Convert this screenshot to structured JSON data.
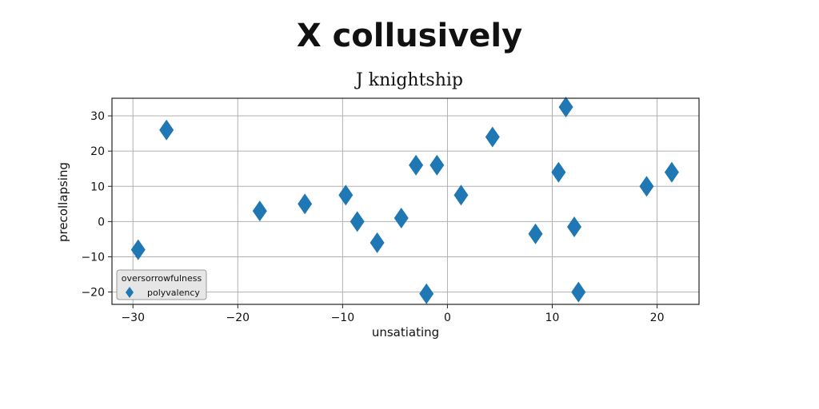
{
  "title": "X collusively",
  "subtitle": "J knightship",
  "chart_data": {
    "type": "scatter",
    "xlabel": "unsatiating",
    "ylabel": "precollapsing",
    "xlim": [
      -32,
      24
    ],
    "ylim": [
      -23.5,
      35
    ],
    "xticks": [
      -30,
      -20,
      -10,
      0,
      10,
      20
    ],
    "yticks": [
      -20,
      -10,
      0,
      10,
      20,
      30
    ],
    "grid": true,
    "legend": {
      "title": "oversorrowfulness",
      "placement": "lower-left"
    },
    "marker": "diamond",
    "color": "#1f77b4",
    "series": [
      {
        "name": "polyvalency",
        "points": [
          {
            "x": -29.5,
            "y": -8
          },
          {
            "x": -26.8,
            "y": 26
          },
          {
            "x": -17.9,
            "y": 3
          },
          {
            "x": -13.6,
            "y": 5
          },
          {
            "x": -9.7,
            "y": 7.5
          },
          {
            "x": -8.6,
            "y": 0
          },
          {
            "x": -6.7,
            "y": -6
          },
          {
            "x": -4.4,
            "y": 1
          },
          {
            "x": -3,
            "y": 16
          },
          {
            "x": -2,
            "y": -20.5
          },
          {
            "x": -1,
            "y": 16
          },
          {
            "x": 1.3,
            "y": 7.5
          },
          {
            "x": 4.3,
            "y": 24
          },
          {
            "x": 8.4,
            "y": -3.5
          },
          {
            "x": 10.6,
            "y": 14
          },
          {
            "x": 11.3,
            "y": 32.5
          },
          {
            "x": 12.1,
            "y": -1.5
          },
          {
            "x": 12.5,
            "y": -20
          },
          {
            "x": 19,
            "y": 10
          },
          {
            "x": 21.4,
            "y": 14
          }
        ]
      }
    ]
  }
}
